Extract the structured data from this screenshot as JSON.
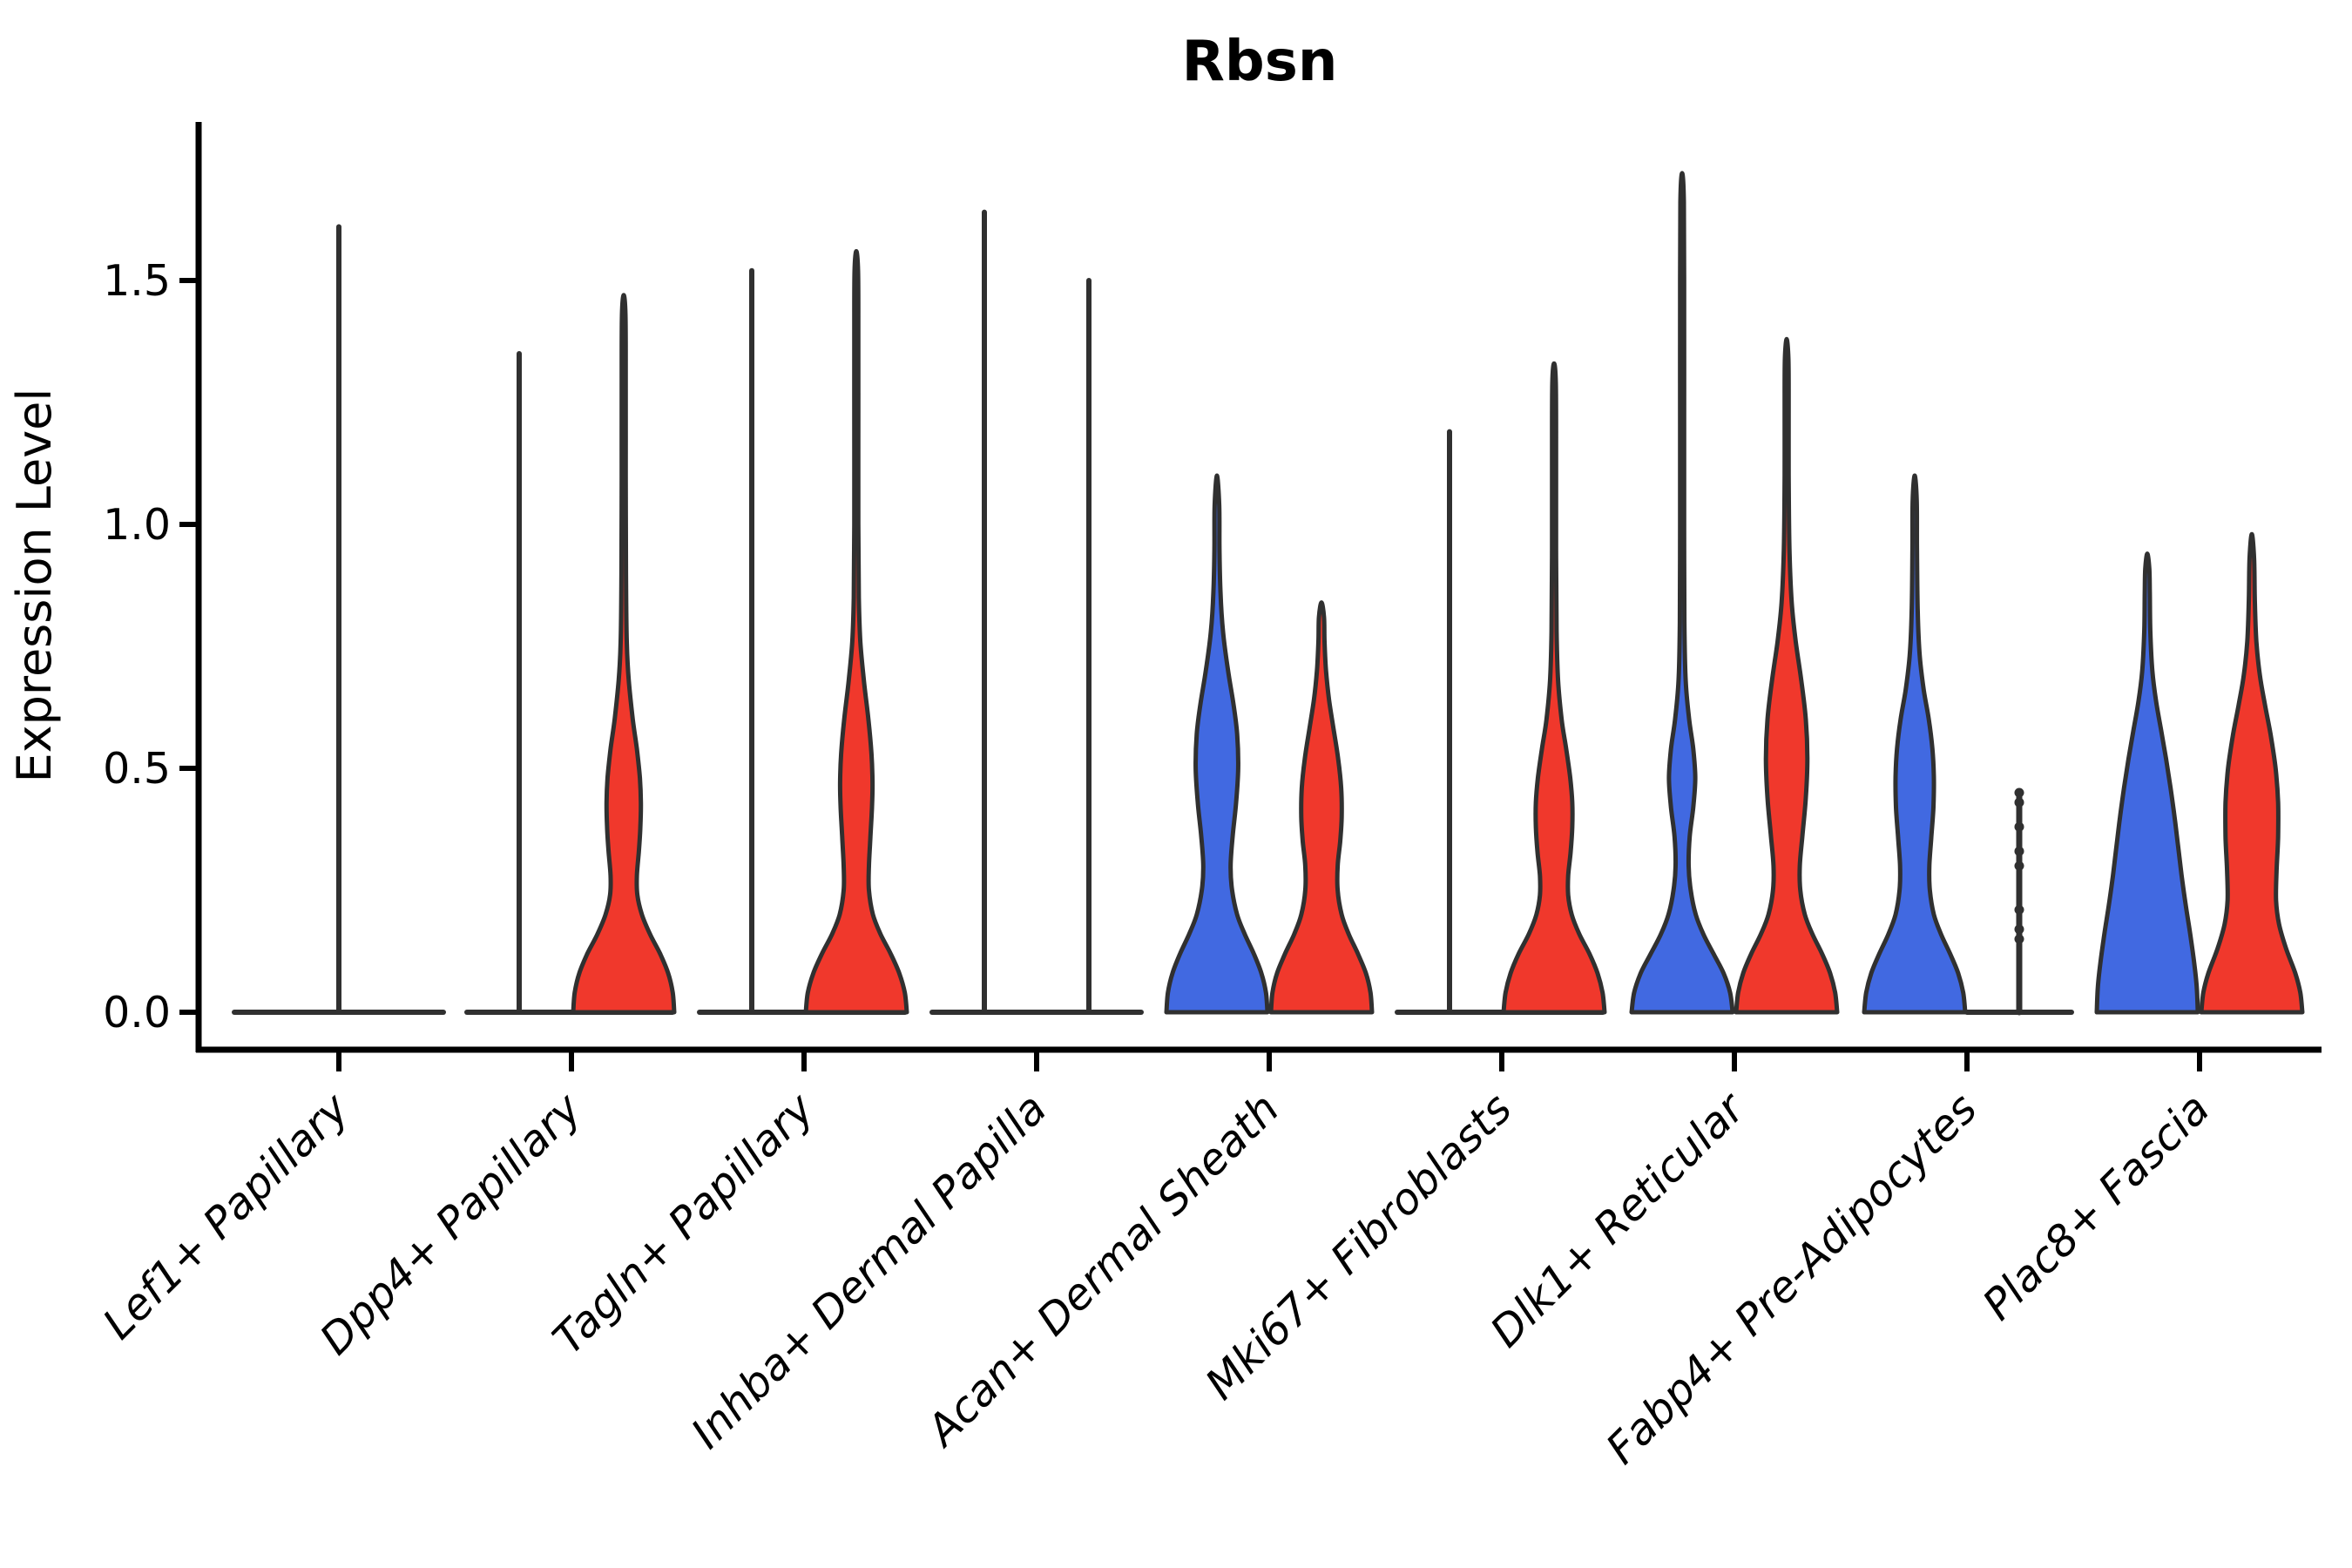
{
  "chart_data": {
    "type": "violin",
    "title": "Rbsn",
    "ylabel": "Expression Level",
    "xlabel": "",
    "ylim": [
      -0.08,
      1.82
    ],
    "yticks": [
      0.0,
      0.5,
      1.0,
      1.5
    ],
    "grid": false,
    "legend": "none",
    "colors": {
      "blue": "#4169E1",
      "red": "#F0382C",
      "outline": "#303030",
      "axis": "#000000"
    },
    "categories": [
      {
        "label": "Lef1+ Papillary",
        "slug": "lef1-papillary",
        "violins": [
          {
            "side": "center",
            "color": "none",
            "style": "flat",
            "max": 1.61
          }
        ]
      },
      {
        "label": "Dpp4+ Papillary",
        "slug": "dpp4-papillary",
        "violins": [
          {
            "side": "left",
            "color": "blue",
            "style": "flat",
            "max": 1.35
          },
          {
            "side": "right",
            "color": "red",
            "style": "shaped",
            "max": 1.47,
            "profile": [
              [
                0,
                1.0
              ],
              [
                0.04,
                0.97
              ],
              [
                0.08,
                0.88
              ],
              [
                0.12,
                0.72
              ],
              [
                0.16,
                0.52
              ],
              [
                0.2,
                0.36
              ],
              [
                0.24,
                0.27
              ],
              [
                0.28,
                0.26
              ],
              [
                0.33,
                0.3
              ],
              [
                0.38,
                0.33
              ],
              [
                0.43,
                0.34
              ],
              [
                0.48,
                0.32
              ],
              [
                0.54,
                0.26
              ],
              [
                0.6,
                0.18
              ],
              [
                0.68,
                0.1
              ],
              [
                0.76,
                0.06
              ],
              [
                0.9,
                0.045
              ],
              [
                1.1,
                0.04
              ],
              [
                1.3,
                0.04
              ],
              [
                1.43,
                0.035
              ],
              [
                1.47,
                0
              ]
            ]
          }
        ]
      },
      {
        "label": "Tagln+ Papillary",
        "slug": "tagln-papillary",
        "violins": [
          {
            "side": "left",
            "color": "blue",
            "style": "flat",
            "max": 1.52
          },
          {
            "side": "right",
            "color": "red",
            "style": "shaped",
            "max": 1.56,
            "profile": [
              [
                0,
                1.0
              ],
              [
                0.04,
                0.96
              ],
              [
                0.08,
                0.85
              ],
              [
                0.12,
                0.68
              ],
              [
                0.16,
                0.48
              ],
              [
                0.2,
                0.33
              ],
              [
                0.25,
                0.25
              ],
              [
                0.3,
                0.25
              ],
              [
                0.36,
                0.28
              ],
              [
                0.42,
                0.31
              ],
              [
                0.47,
                0.32
              ],
              [
                0.53,
                0.3
              ],
              [
                0.6,
                0.24
              ],
              [
                0.68,
                0.15
              ],
              [
                0.76,
                0.08
              ],
              [
                0.85,
                0.05
              ],
              [
                1.0,
                0.04
              ],
              [
                1.2,
                0.04
              ],
              [
                1.4,
                0.04
              ],
              [
                1.52,
                0.035
              ],
              [
                1.56,
                0
              ]
            ]
          }
        ]
      },
      {
        "label": "Inhba+ Dermal Papilla",
        "slug": "inhba-dermal-papilla",
        "violins": [
          {
            "side": "left",
            "color": "blue",
            "style": "flat",
            "max": 1.64
          },
          {
            "side": "right",
            "color": "red",
            "style": "flat",
            "max": 1.5
          }
        ]
      },
      {
        "label": "Acan+ Dermal Sheath",
        "slug": "acan-dermal-sheath",
        "violins": [
          {
            "side": "left",
            "color": "blue",
            "style": "shaped",
            "max": 1.1,
            "profile": [
              [
                0,
                1.0
              ],
              [
                0.04,
                0.97
              ],
              [
                0.08,
                0.88
              ],
              [
                0.12,
                0.73
              ],
              [
                0.16,
                0.55
              ],
              [
                0.2,
                0.4
              ],
              [
                0.25,
                0.3
              ],
              [
                0.3,
                0.27
              ],
              [
                0.36,
                0.31
              ],
              [
                0.43,
                0.38
              ],
              [
                0.5,
                0.42
              ],
              [
                0.57,
                0.4
              ],
              [
                0.63,
                0.33
              ],
              [
                0.7,
                0.22
              ],
              [
                0.78,
                0.12
              ],
              [
                0.86,
                0.07
              ],
              [
                0.95,
                0.05
              ],
              [
                1.04,
                0.045
              ],
              [
                1.1,
                0
              ]
            ]
          },
          {
            "side": "right",
            "color": "red",
            "style": "shaped",
            "max": 0.84,
            "profile": [
              [
                0,
                1.0
              ],
              [
                0.04,
                0.97
              ],
              [
                0.08,
                0.88
              ],
              [
                0.12,
                0.72
              ],
              [
                0.16,
                0.54
              ],
              [
                0.2,
                0.4
              ],
              [
                0.25,
                0.32
              ],
              [
                0.3,
                0.32
              ],
              [
                0.35,
                0.37
              ],
              [
                0.4,
                0.4
              ],
              [
                0.46,
                0.39
              ],
              [
                0.52,
                0.33
              ],
              [
                0.58,
                0.24
              ],
              [
                0.64,
                0.15
              ],
              [
                0.7,
                0.09
              ],
              [
                0.76,
                0.06
              ],
              [
                0.81,
                0.05
              ],
              [
                0.84,
                0
              ]
            ]
          }
        ]
      },
      {
        "label": "Mki67+ Fibroblasts",
        "slug": "mki67-fibroblasts",
        "violins": [
          {
            "side": "left",
            "color": "blue",
            "style": "flat",
            "max": 1.19
          },
          {
            "side": "right",
            "color": "red",
            "style": "shaped",
            "max": 1.33,
            "profile": [
              [
                0,
                1.0
              ],
              [
                0.04,
                0.96
              ],
              [
                0.08,
                0.86
              ],
              [
                0.12,
                0.7
              ],
              [
                0.16,
                0.5
              ],
              [
                0.2,
                0.35
              ],
              [
                0.24,
                0.28
              ],
              [
                0.28,
                0.28
              ],
              [
                0.33,
                0.33
              ],
              [
                0.38,
                0.36
              ],
              [
                0.43,
                0.36
              ],
              [
                0.48,
                0.32
              ],
              [
                0.54,
                0.24
              ],
              [
                0.6,
                0.15
              ],
              [
                0.68,
                0.08
              ],
              [
                0.78,
                0.05
              ],
              [
                0.95,
                0.04
              ],
              [
                1.15,
                0.04
              ],
              [
                1.29,
                0.035
              ],
              [
                1.33,
                0
              ]
            ]
          }
        ]
      },
      {
        "label": "Dlk1+ Reticular",
        "slug": "dlk1-reticular",
        "violins": [
          {
            "side": "left",
            "color": "blue",
            "style": "shaped",
            "max": 1.72,
            "profile": [
              [
                0,
                1.0
              ],
              [
                0.04,
                0.95
              ],
              [
                0.08,
                0.82
              ],
              [
                0.12,
                0.62
              ],
              [
                0.16,
                0.42
              ],
              [
                0.2,
                0.27
              ],
              [
                0.25,
                0.17
              ],
              [
                0.3,
                0.13
              ],
              [
                0.36,
                0.15
              ],
              [
                0.42,
                0.22
              ],
              [
                0.48,
                0.26
              ],
              [
                0.54,
                0.22
              ],
              [
                0.6,
                0.14
              ],
              [
                0.68,
                0.07
              ],
              [
                0.8,
                0.045
              ],
              [
                1.0,
                0.04
              ],
              [
                1.2,
                0.04
              ],
              [
                1.45,
                0.04
              ],
              [
                1.66,
                0.035
              ],
              [
                1.72,
                0
              ]
            ]
          },
          {
            "side": "right",
            "color": "red",
            "style": "shaped",
            "max": 1.38,
            "profile": [
              [
                0,
                1.0
              ],
              [
                0.04,
                0.96
              ],
              [
                0.08,
                0.86
              ],
              [
                0.12,
                0.7
              ],
              [
                0.16,
                0.51
              ],
              [
                0.2,
                0.36
              ],
              [
                0.25,
                0.27
              ],
              [
                0.3,
                0.26
              ],
              [
                0.36,
                0.31
              ],
              [
                0.44,
                0.38
              ],
              [
                0.52,
                0.41
              ],
              [
                0.6,
                0.38
              ],
              [
                0.68,
                0.29
              ],
              [
                0.76,
                0.18
              ],
              [
                0.84,
                0.1
              ],
              [
                0.95,
                0.055
              ],
              [
                1.1,
                0.04
              ],
              [
                1.25,
                0.04
              ],
              [
                1.34,
                0.035
              ],
              [
                1.38,
                0
              ]
            ]
          }
        ]
      },
      {
        "label": "Fabp4+ Pre-Adipocytes",
        "slug": "fabp4-pre-adipocytes",
        "violins": [
          {
            "side": "left",
            "color": "blue",
            "style": "shaped",
            "max": 1.1,
            "profile": [
              [
                0,
                1.0
              ],
              [
                0.04,
                0.96
              ],
              [
                0.08,
                0.86
              ],
              [
                0.12,
                0.7
              ],
              [
                0.16,
                0.52
              ],
              [
                0.2,
                0.38
              ],
              [
                0.25,
                0.3
              ],
              [
                0.3,
                0.29
              ],
              [
                0.36,
                0.33
              ],
              [
                0.42,
                0.37
              ],
              [
                0.48,
                0.38
              ],
              [
                0.54,
                0.35
              ],
              [
                0.6,
                0.28
              ],
              [
                0.66,
                0.18
              ],
              [
                0.73,
                0.1
              ],
              [
                0.82,
                0.06
              ],
              [
                0.95,
                0.045
              ],
              [
                1.05,
                0.04
              ],
              [
                1.1,
                0
              ]
            ]
          },
          {
            "side": "right",
            "color": "red",
            "style": "line-points",
            "max": 0.45,
            "points": [
              0.15,
              0.17,
              0.21,
              0.3,
              0.33,
              0.38,
              0.43,
              0.45
            ]
          }
        ]
      },
      {
        "label": "Plac8+ Fascia",
        "slug": "plac8-fascia",
        "violins": [
          {
            "side": "left",
            "color": "blue",
            "style": "shaped",
            "max": 0.94,
            "profile": [
              [
                0,
                1.0
              ],
              [
                0.05,
                0.98
              ],
              [
                0.1,
                0.93
              ],
              [
                0.16,
                0.85
              ],
              [
                0.22,
                0.76
              ],
              [
                0.28,
                0.68
              ],
              [
                0.34,
                0.61
              ],
              [
                0.4,
                0.54
              ],
              [
                0.46,
                0.46
              ],
              [
                0.52,
                0.37
              ],
              [
                0.58,
                0.27
              ],
              [
                0.64,
                0.17
              ],
              [
                0.7,
                0.1
              ],
              [
                0.78,
                0.06
              ],
              [
                0.86,
                0.05
              ],
              [
                0.91,
                0.04
              ],
              [
                0.94,
                0
              ]
            ]
          },
          {
            "side": "right",
            "color": "red",
            "style": "shaped",
            "max": 0.98,
            "profile": [
              [
                0,
                1.0
              ],
              [
                0.04,
                0.96
              ],
              [
                0.08,
                0.86
              ],
              [
                0.13,
                0.68
              ],
              [
                0.18,
                0.54
              ],
              [
                0.23,
                0.48
              ],
              [
                0.29,
                0.49
              ],
              [
                0.36,
                0.52
              ],
              [
                0.43,
                0.52
              ],
              [
                0.5,
                0.47
              ],
              [
                0.57,
                0.37
              ],
              [
                0.63,
                0.26
              ],
              [
                0.69,
                0.16
              ],
              [
                0.76,
                0.09
              ],
              [
                0.84,
                0.06
              ],
              [
                0.93,
                0.045
              ],
              [
                0.98,
                0
              ]
            ]
          }
        ]
      }
    ]
  }
}
